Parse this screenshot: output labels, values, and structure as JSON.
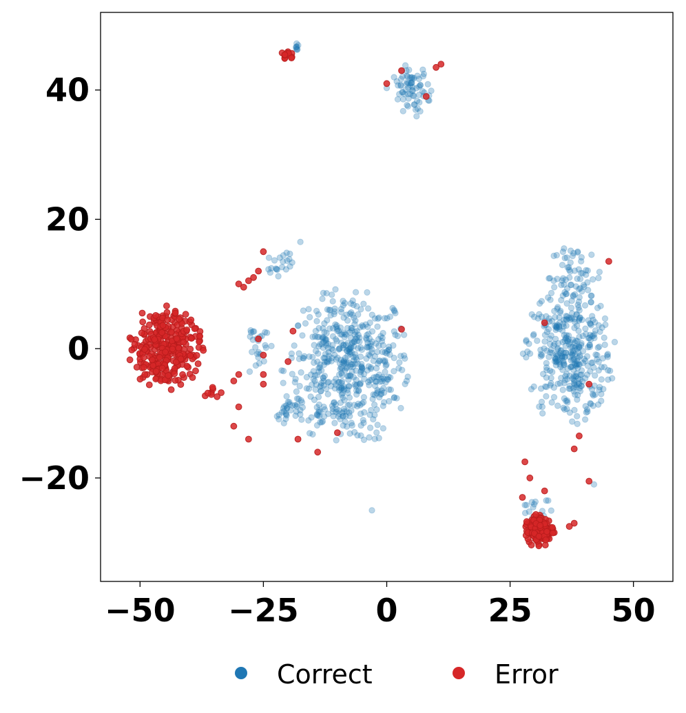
{
  "chart_data": {
    "type": "scatter",
    "title": "",
    "xlabel": "",
    "ylabel": "",
    "xlim": [
      -58,
      58
    ],
    "ylim": [
      -36,
      52
    ],
    "x_ticks": [
      {
        "value": -50,
        "label": "−50"
      },
      {
        "value": -25,
        "label": "−25"
      },
      {
        "value": 0,
        "label": "0"
      },
      {
        "value": 25,
        "label": "25"
      },
      {
        "value": 50,
        "label": "50"
      }
    ],
    "y_ticks": [
      {
        "value": 40,
        "label": "40"
      },
      {
        "value": 20,
        "label": "20"
      },
      {
        "value": 0,
        "label": "0"
      },
      {
        "value": -20,
        "label": "−20"
      }
    ],
    "grid": false,
    "legend_position": "bottom",
    "series": [
      {
        "name": "Correct",
        "color": "#1f77b4",
        "clusters": [
          {
            "cx": -8,
            "cy": -3,
            "rx": 13,
            "ry": 12,
            "n": 520
          },
          {
            "cx": 37,
            "cy": -1,
            "rx": 9,
            "ry": 11,
            "n": 360
          },
          {
            "cx": 38,
            "cy": 11,
            "rx": 6,
            "ry": 5,
            "n": 60
          },
          {
            "cx": 5,
            "cy": 40,
            "rx": 4,
            "ry": 4,
            "n": 70
          },
          {
            "cx": -18,
            "cy": 46.5,
            "rx": 1,
            "ry": 1,
            "n": 8
          },
          {
            "cx": -22,
            "cy": 13,
            "rx": 3,
            "ry": 2.5,
            "n": 20
          },
          {
            "cx": -20,
            "cy": -10,
            "rx": 2.5,
            "ry": 2.5,
            "n": 25
          },
          {
            "cx": -26,
            "cy": 0,
            "rx": 3,
            "ry": 5,
            "n": 25
          },
          {
            "cx": 30,
            "cy": -24,
            "rx": 4,
            "ry": 3,
            "n": 14
          }
        ],
        "points": [
          [
            -3,
            -25
          ],
          [
            42,
            -21
          ],
          [
            0,
            40.3
          ],
          [
            -17.5,
            16.5
          ]
        ]
      },
      {
        "name": "Error",
        "color": "#d62728",
        "clusters": [
          {
            "cx": -45,
            "cy": 0,
            "rx": 7.5,
            "ry": 6.5,
            "n": 300
          },
          {
            "cx": 31,
            "cy": -28,
            "rx": 3,
            "ry": 2.8,
            "n": 130
          },
          {
            "cx": -20,
            "cy": 45.5,
            "rx": 1.2,
            "ry": 0.9,
            "n": 12
          },
          {
            "cx": -35,
            "cy": -7,
            "rx": 2,
            "ry": 1.5,
            "n": 8
          }
        ],
        "points": [
          [
            -25,
            15
          ],
          [
            -26,
            12
          ],
          [
            -27,
            11
          ],
          [
            -28,
            10.5
          ],
          [
            -30,
            10
          ],
          [
            -29,
            9.5
          ],
          [
            -30,
            -4
          ],
          [
            -31,
            -5
          ],
          [
            -30,
            -9
          ],
          [
            -28,
            -14
          ],
          [
            -31,
            -12
          ],
          [
            -26,
            1.5
          ],
          [
            -25,
            -1
          ],
          [
            -25,
            -4
          ],
          [
            -25,
            -5.5
          ],
          [
            -19,
            2.7
          ],
          [
            -20,
            -2
          ],
          [
            -18,
            -14
          ],
          [
            -14,
            -16
          ],
          [
            -10,
            -13
          ],
          [
            3,
            3
          ],
          [
            0,
            41
          ],
          [
            3,
            43
          ],
          [
            8,
            39
          ],
          [
            10,
            43.5
          ],
          [
            11,
            44
          ],
          [
            45,
            13.5
          ],
          [
            32,
            4
          ],
          [
            41,
            -5.5
          ],
          [
            38,
            -15.5
          ],
          [
            39,
            -13.5
          ],
          [
            41,
            -20.5
          ],
          [
            28,
            -17.5
          ],
          [
            29,
            -20
          ],
          [
            32,
            -22
          ],
          [
            27.5,
            -23
          ],
          [
            38,
            -27
          ],
          [
            37,
            -27.5
          ]
        ]
      }
    ]
  }
}
